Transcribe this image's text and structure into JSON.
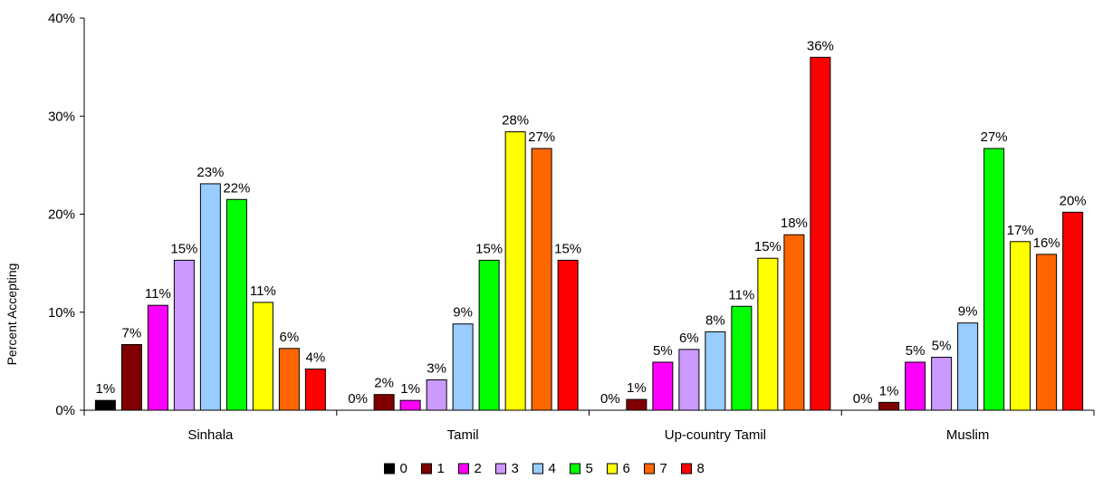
{
  "chart_data": {
    "type": "bar",
    "title": "",
    "xlabel": "",
    "ylabel": "Percent Accepting",
    "ylim": [
      0,
      40
    ],
    "yticks": [
      "0%",
      "10%",
      "20%",
      "30%",
      "40%"
    ],
    "categories": [
      "Sinhala",
      "Tamil",
      "Up-country Tamil",
      "Muslim"
    ],
    "grid": false,
    "legend_position": "bottom",
    "series": [
      {
        "name": "0",
        "color": "#000000",
        "values": [
          1,
          0,
          0,
          0
        ],
        "labels": [
          "1%",
          "0%",
          "0%",
          "0%"
        ]
      },
      {
        "name": "1",
        "color": "#800000",
        "values": [
          6.7,
          1.6,
          1.1,
          0.8
        ],
        "labels": [
          "7%",
          "2%",
          "1%",
          "1%"
        ]
      },
      {
        "name": "2",
        "color": "#ff00ff",
        "values": [
          10.7,
          1.0,
          4.9,
          4.9
        ],
        "labels": [
          "11%",
          "1%",
          "5%",
          "5%"
        ]
      },
      {
        "name": "3",
        "color": "#cc99ff",
        "values": [
          15.3,
          3.1,
          6.2,
          5.4
        ],
        "labels": [
          "15%",
          "3%",
          "6%",
          "5%"
        ]
      },
      {
        "name": "4",
        "color": "#99ccff",
        "values": [
          23.1,
          8.8,
          8.0,
          8.9
        ],
        "labels": [
          "23%",
          "9%",
          "8%",
          "9%"
        ]
      },
      {
        "name": "5",
        "color": "#00ff00",
        "values": [
          21.5,
          15.3,
          10.6,
          26.7
        ],
        "labels": [
          "22%",
          "15%",
          "11%",
          "27%"
        ]
      },
      {
        "name": "6",
        "color": "#ffff00",
        "values": [
          11.0,
          28.4,
          15.5,
          17.2
        ],
        "labels": [
          "11%",
          "28%",
          "15%",
          "17%"
        ]
      },
      {
        "name": "7",
        "color": "#ff6600",
        "values": [
          6.3,
          26.7,
          17.9,
          15.9
        ],
        "labels": [
          "6%",
          "27%",
          "18%",
          "16%"
        ]
      },
      {
        "name": "8",
        "color": "#ff0000",
        "values": [
          4.2,
          15.3,
          36.0,
          20.2
        ],
        "labels": [
          "4%",
          "15%",
          "36%",
          "20%"
        ]
      }
    ]
  }
}
